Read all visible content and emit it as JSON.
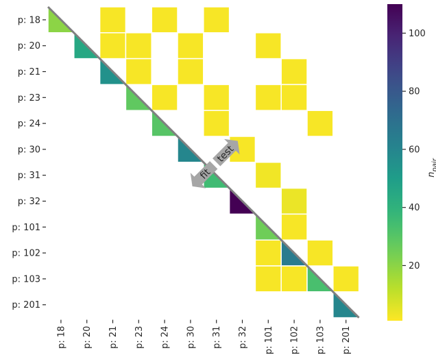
{
  "chart_data": {
    "type": "heatmap",
    "rows": [
      "p: 18",
      "p: 20",
      "p: 21",
      "p: 23",
      "p: 24",
      "p: 30",
      "p: 31",
      "p: 32",
      "p: 101",
      "p: 102",
      "p: 103",
      "p: 201"
    ],
    "cols": [
      "p: 18",
      "p: 20",
      "p: 21",
      "p: 23",
      "p: 24",
      "p: 30",
      "p: 31",
      "p: 32",
      "p: 101",
      "p: 102",
      "p: 103",
      "p: 201"
    ],
    "cells": [
      {
        "row": 0,
        "col": 0,
        "value": 20
      },
      {
        "row": 0,
        "col": 2,
        "value": 2
      },
      {
        "row": 0,
        "col": 4,
        "value": 2
      },
      {
        "row": 0,
        "col": 6,
        "value": 2
      },
      {
        "row": 1,
        "col": 1,
        "value": 45
      },
      {
        "row": 1,
        "col": 2,
        "value": 2
      },
      {
        "row": 1,
        "col": 3,
        "value": 2
      },
      {
        "row": 1,
        "col": 5,
        "value": 2
      },
      {
        "row": 1,
        "col": 8,
        "value": 2
      },
      {
        "row": 2,
        "col": 2,
        "value": 55
      },
      {
        "row": 2,
        "col": 3,
        "value": 2
      },
      {
        "row": 2,
        "col": 5,
        "value": 2
      },
      {
        "row": 2,
        "col": 9,
        "value": 2
      },
      {
        "row": 3,
        "col": 3,
        "value": 28
      },
      {
        "row": 3,
        "col": 4,
        "value": 2
      },
      {
        "row": 3,
        "col": 6,
        "value": 2
      },
      {
        "row": 3,
        "col": 8,
        "value": 2
      },
      {
        "row": 3,
        "col": 9,
        "value": 2
      },
      {
        "row": 4,
        "col": 4,
        "value": 30
      },
      {
        "row": 4,
        "col": 6,
        "value": 2
      },
      {
        "row": 4,
        "col": 10,
        "value": 2
      },
      {
        "row": 5,
        "col": 5,
        "value": 60
      },
      {
        "row": 5,
        "col": 7,
        "value": 2
      },
      {
        "row": 6,
        "col": 6,
        "value": 35
      },
      {
        "row": 6,
        "col": 8,
        "value": 3
      },
      {
        "row": 7,
        "col": 7,
        "value": 110
      },
      {
        "row": 7,
        "col": 9,
        "value": 4
      },
      {
        "row": 8,
        "col": 8,
        "value": 25
      },
      {
        "row": 8,
        "col": 9,
        "value": 2
      },
      {
        "row": 9,
        "col": 8,
        "value": 2
      },
      {
        "row": 9,
        "col": 9,
        "value": 65
      },
      {
        "row": 9,
        "col": 10,
        "value": 2
      },
      {
        "row": 10,
        "col": 8,
        "value": 2
      },
      {
        "row": 10,
        "col": 9,
        "value": 2
      },
      {
        "row": 10,
        "col": 10,
        "value": 33
      },
      {
        "row": 10,
        "col": 11,
        "value": 2
      },
      {
        "row": 11,
        "col": 11,
        "value": 60
      }
    ],
    "colorbar": {
      "colormap": "viridis_r",
      "vmin": 1,
      "vmax": 110,
      "ticks": [
        20,
        40,
        60,
        80,
        100
      ],
      "label": "n_pair"
    },
    "annotations": {
      "upper_label": "test",
      "lower_label": "fit"
    },
    "grid": false
  },
  "colors": {
    "diagonal": "#808080",
    "arrow": "#a6a6a6",
    "text": "#262626"
  }
}
